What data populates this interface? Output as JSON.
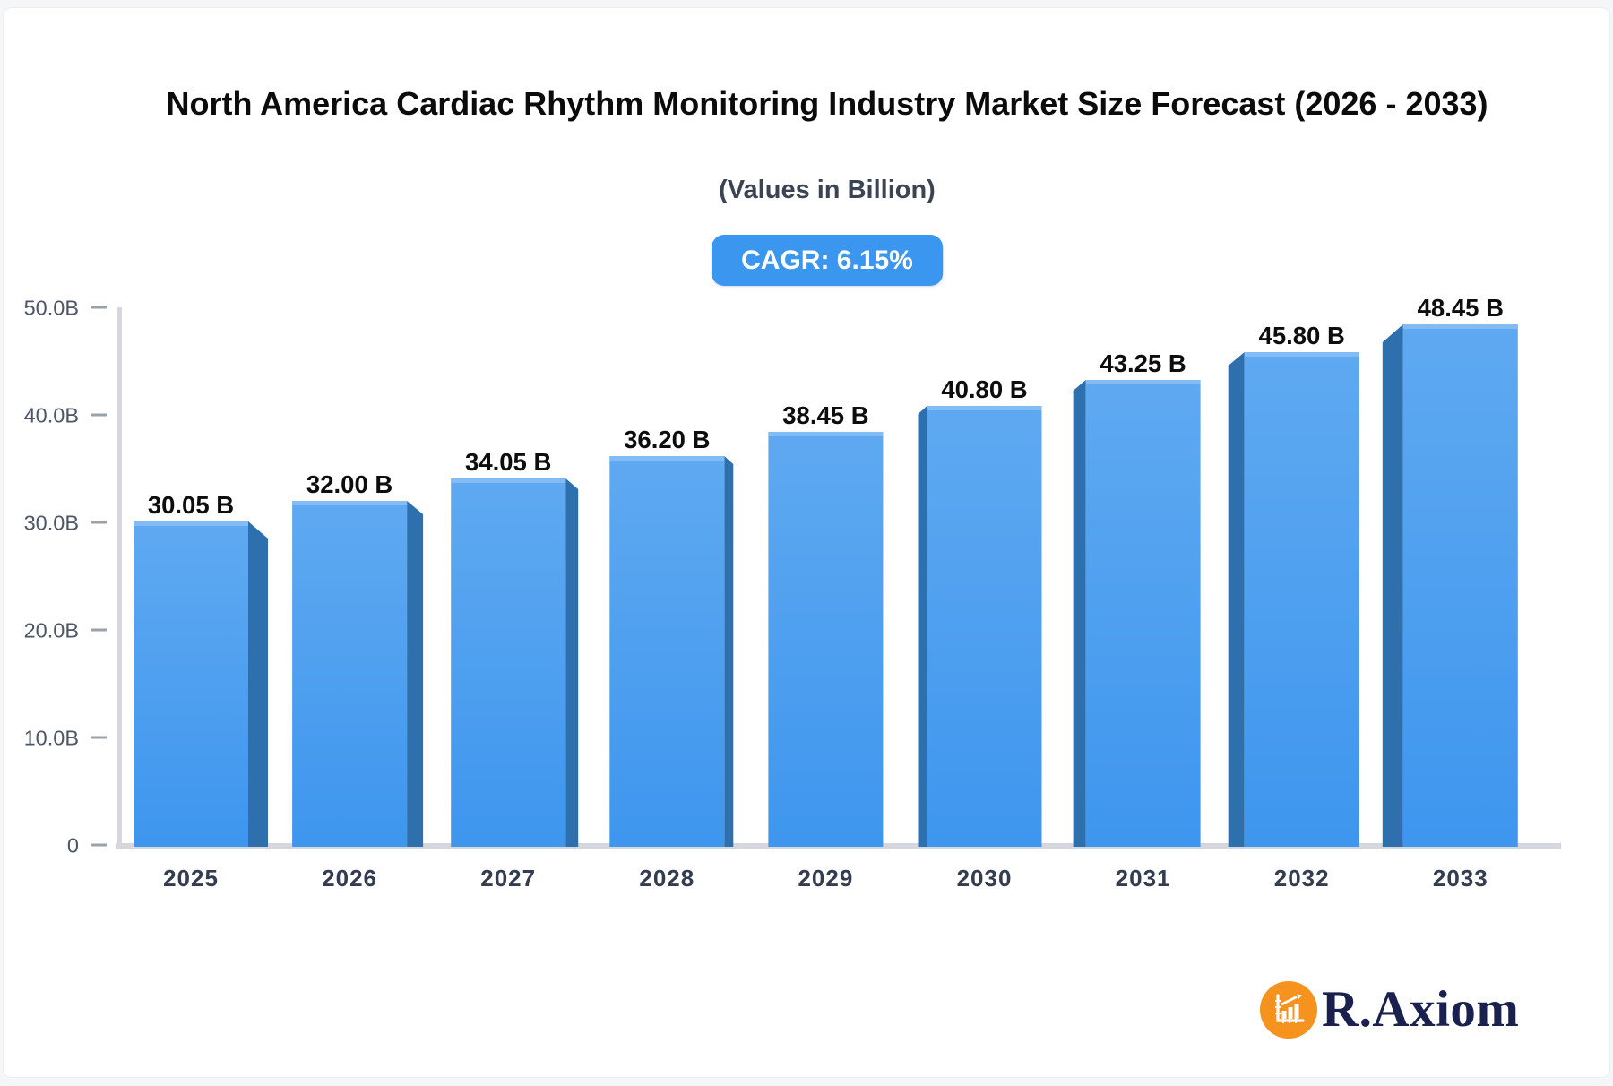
{
  "chart_data": {
    "type": "bar",
    "title": "North America Cardiac Rhythm Monitoring Industry Market Size Forecast (2026 - 2033)",
    "subtitle": "(Values in Billion)",
    "cagr_badge": "CAGR: 6.15%",
    "unit": "Billion USD",
    "categories": [
      "2025",
      "2026",
      "2027",
      "2028",
      "2029",
      "2030",
      "2031",
      "2032",
      "2033"
    ],
    "values": [
      30.05,
      32.0,
      34.05,
      36.2,
      38.45,
      40.8,
      43.25,
      45.8,
      48.45
    ],
    "value_labels": [
      "30.05 B",
      "32.00 B",
      "34.05 B",
      "36.20 B",
      "38.45 B",
      "40.80 B",
      "43.25 B",
      "45.80 B",
      "48.45 B"
    ],
    "ylim": [
      0,
      50
    ],
    "yticks": [
      {
        "value": 0,
        "label": "0"
      },
      {
        "value": 10,
        "label": "10.0B"
      },
      {
        "value": 20,
        "label": "20.0B"
      },
      {
        "value": 30,
        "label": "30.0B"
      },
      {
        "value": 40,
        "label": "40.0B"
      },
      {
        "value": 50,
        "label": "50.0B"
      }
    ],
    "grid": false,
    "legend": false,
    "style_3d": "center-perspective",
    "colors": {
      "bar_top": "#5fa9f1",
      "bar_bottom": "#3e96ee",
      "bar_side": "#2d70ad",
      "bar_highlight": "#85bcf4",
      "axis_line": "#d5d7dc",
      "tick_dash": "#9aa2ad",
      "tick_label": "#4d5666",
      "value_label": "#0d0d0d",
      "category_label": "#343d4f",
      "badge_bg": "#3b96f0",
      "badge_text": "#ffffff"
    }
  },
  "logo": {
    "text": "R.Axiom",
    "icon": "bar-chart-growth-icon",
    "circle_color": "#f6921e",
    "text_color": "#1a214f"
  }
}
